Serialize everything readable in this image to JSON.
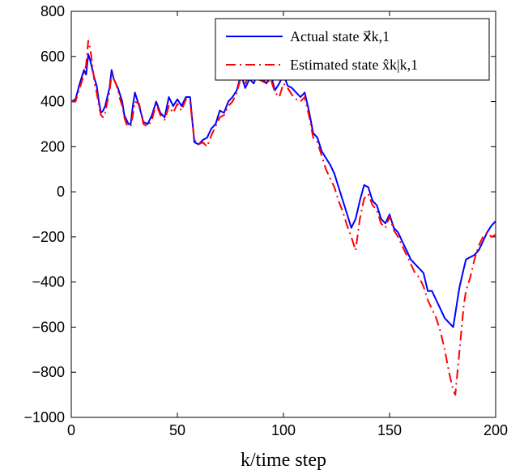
{
  "chart_data": {
    "type": "line",
    "title": "",
    "xlabel": "k/time step",
    "ylabel": "",
    "xlim": [
      0,
      200
    ],
    "ylim": [
      -1000,
      800
    ],
    "xticks": [
      0,
      50,
      100,
      150,
      200
    ],
    "yticks": [
      -1000,
      -800,
      -600,
      -400,
      -200,
      0,
      200,
      400,
      600,
      800
    ],
    "ytick_labels": [
      "−1000",
      "−800",
      "−600",
      "−400",
      "−200",
      "0",
      "200",
      "400",
      "600",
      "800"
    ],
    "grid": false,
    "legend_position": "top-right",
    "series": [
      {
        "name": "Actual state x⃗k,1",
        "color": "#0000ff",
        "style": "solid",
        "x": [
          0,
          2,
          4,
          6,
          7,
          8,
          9,
          10,
          11,
          12,
          13,
          14,
          15,
          16,
          17,
          18,
          19,
          20,
          21,
          22,
          23,
          24,
          25,
          26,
          27,
          28,
          29,
          30,
          32,
          34,
          36,
          38,
          40,
          42,
          44,
          46,
          48,
          50,
          52,
          54,
          56,
          58,
          60,
          62,
          64,
          66,
          68,
          70,
          72,
          74,
          76,
          78,
          80,
          82,
          84,
          86,
          88,
          90,
          92,
          94,
          96,
          98,
          100,
          102,
          104,
          106,
          108,
          110,
          112,
          114,
          116,
          118,
          120,
          122,
          124,
          126,
          128,
          130,
          132,
          134,
          136,
          138,
          140,
          142,
          144,
          146,
          148,
          150,
          152,
          154,
          156,
          158,
          160,
          162,
          164,
          166,
          168,
          170,
          172,
          174,
          176,
          178,
          180,
          181,
          182,
          183,
          184,
          185,
          186,
          188,
          190,
          192,
          194,
          196,
          198,
          200
        ],
        "y": [
          400,
          410,
          480,
          540,
          520,
          610,
          580,
          540,
          500,
          470,
          400,
          350,
          360,
          380,
          420,
          460,
          540,
          500,
          480,
          460,
          430,
          400,
          340,
          320,
          300,
          300,
          380,
          440,
          380,
          310,
          300,
          340,
          400,
          350,
          330,
          420,
          380,
          410,
          380,
          420,
          420,
          220,
          210,
          230,
          240,
          280,
          300,
          360,
          350,
          400,
          420,
          450,
          520,
          460,
          500,
          480,
          530,
          500,
          480,
          520,
          450,
          480,
          520,
          470,
          460,
          440,
          420,
          440,
          360,
          260,
          240,
          180,
          150,
          120,
          80,
          20,
          -40,
          -100,
          -160,
          -120,
          -40,
          30,
          20,
          -40,
          -60,
          -120,
          -140,
          -100,
          -160,
          -180,
          -220,
          -260,
          -300,
          -320,
          -340,
          -360,
          -440,
          -440,
          -480,
          -520,
          -560,
          -580,
          -600,
          -540,
          -480,
          -420,
          -380,
          -340,
          -300,
          -290,
          -280,
          -260,
          -220,
          -180,
          -150,
          -130
        ]
      },
      {
        "name": "Estimated state x̂k|k,1",
        "color": "#ff0000",
        "style": "dashdot",
        "x": [
          0,
          2,
          4,
          6,
          7,
          8,
          9,
          10,
          11,
          12,
          13,
          14,
          15,
          16,
          17,
          18,
          19,
          20,
          21,
          22,
          23,
          24,
          25,
          26,
          27,
          28,
          29,
          30,
          32,
          34,
          36,
          38,
          40,
          42,
          44,
          46,
          48,
          50,
          52,
          54,
          56,
          58,
          60,
          62,
          64,
          66,
          68,
          70,
          72,
          74,
          76,
          78,
          80,
          82,
          84,
          86,
          88,
          90,
          92,
          94,
          96,
          98,
          100,
          102,
          104,
          106,
          108,
          110,
          112,
          114,
          116,
          118,
          120,
          122,
          124,
          126,
          128,
          130,
          132,
          134,
          136,
          138,
          140,
          142,
          144,
          146,
          148,
          150,
          152,
          154,
          156,
          158,
          160,
          162,
          164,
          166,
          168,
          170,
          172,
          174,
          176,
          178,
          180,
          181,
          182,
          183,
          184,
          185,
          186,
          188,
          190,
          192,
          194,
          196,
          198,
          200
        ],
        "y": [
          400,
          400,
          460,
          520,
          560,
          670,
          630,
          560,
          480,
          440,
          380,
          340,
          330,
          350,
          400,
          440,
          520,
          500,
          480,
          450,
          410,
          380,
          330,
          300,
          290,
          290,
          340,
          400,
          390,
          300,
          290,
          320,
          390,
          340,
          320,
          380,
          350,
          390,
          360,
          410,
          400,
          230,
          210,
          220,
          200,
          250,
          290,
          330,
          340,
          380,
          400,
          440,
          510,
          480,
          520,
          500,
          500,
          490,
          480,
          500,
          440,
          420,
          480,
          460,
          430,
          410,
          400,
          420,
          340,
          240,
          220,
          160,
          100,
          60,
          20,
          -40,
          -90,
          -150,
          -200,
          -260,
          -120,
          -30,
          -10,
          -60,
          -80,
          -140,
          -160,
          -110,
          -170,
          -200,
          -240,
          -280,
          -320,
          -360,
          -380,
          -420,
          -480,
          -520,
          -560,
          -620,
          -700,
          -800,
          -880,
          -900,
          -800,
          -700,
          -600,
          -500,
          -440,
          -380,
          -300,
          -240,
          -200,
          -180,
          -200,
          -190
        ]
      }
    ]
  }
}
